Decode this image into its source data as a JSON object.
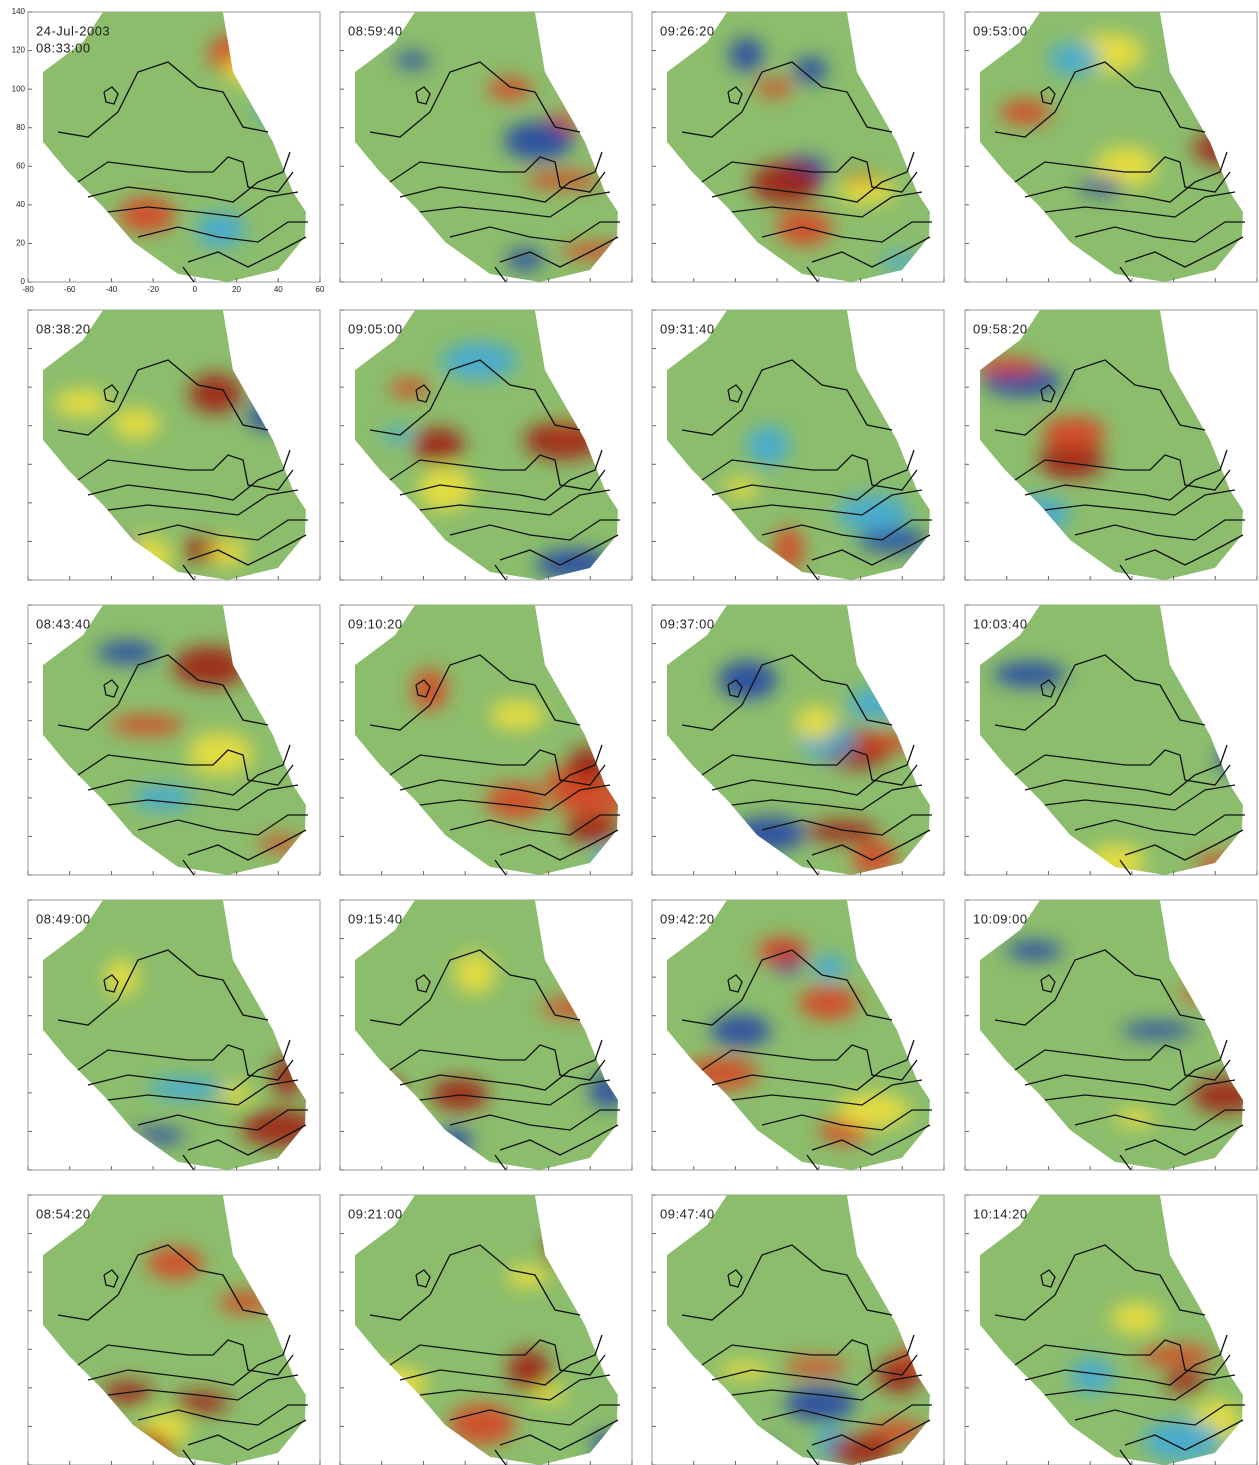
{
  "chart_data": {
    "type": "heatmap-grid",
    "date": "24-Jul-2003",
    "panels": [
      "08:33:00",
      "08:38:20",
      "08:43:40",
      "08:49:00",
      "08:54:20",
      "08:59:40",
      "09:05:00",
      "09:10:20",
      "09:15:40",
      "09:21:00",
      "09:26:20",
      "09:31:40",
      "09:37:00",
      "09:42:20",
      "09:47:40",
      "09:53:00",
      "09:58:20",
      "10:03:40",
      "10:09:00",
      "10:14:20"
    ],
    "xlim": [
      -80,
      60
    ],
    "ylim": [
      0,
      140
    ],
    "xticks": [
      -80,
      -60,
      -40,
      -20,
      0,
      20,
      40,
      60
    ],
    "yticks": [
      0,
      20,
      40,
      60,
      80,
      100,
      120,
      140
    ]
  }
}
